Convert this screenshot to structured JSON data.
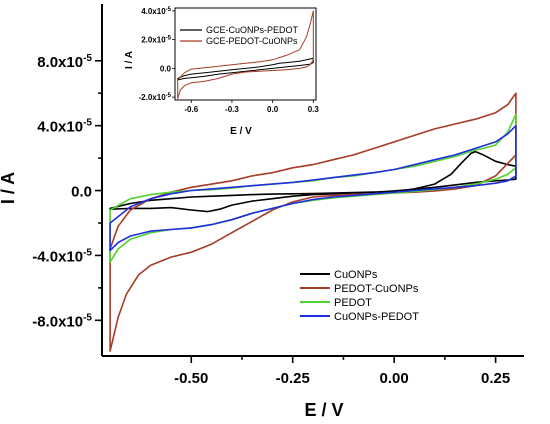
{
  "chart_data": [
    {
      "type": "line",
      "xlabel": "E / V",
      "ylabel": "I / A",
      "xlim": [
        -0.72,
        0.32
      ],
      "ylim": [
        -0.000102,
        0.000115
      ],
      "x_ticks": [
        -0.5,
        -0.25,
        0.0,
        0.25
      ],
      "x_tick_labels": [
        "-0.50",
        "-0.25",
        "0.00",
        "0.25"
      ],
      "y_ticks": [
        -8e-05,
        -4e-05,
        0.0,
        4e-05,
        8e-05
      ],
      "y_tick_labels": [
        {
          "mant": "-8.0x10",
          "exp": "-5"
        },
        {
          "mant": "-4.0x10",
          "exp": "-5"
        },
        {
          "mant": "0.0",
          "exp": ""
        },
        {
          "mant": "4.0x10",
          "exp": "-5"
        },
        {
          "mant": "8.0x10",
          "exp": "-5"
        }
      ],
      "legend_position": "bottom-right",
      "series": [
        {
          "name": "CuONPs",
          "color": "#000000",
          "x": [
            -0.7,
            -0.65,
            -0.6,
            -0.55,
            -0.5,
            -0.45,
            -0.4,
            -0.35,
            -0.3,
            -0.25,
            -0.2,
            -0.15,
            -0.1,
            -0.05,
            0.0,
            0.05,
            0.1,
            0.14,
            0.17,
            0.19,
            0.2,
            0.22,
            0.25,
            0.28,
            0.3,
            0.3,
            0.28,
            0.25,
            0.2,
            0.15,
            0.1,
            0.05,
            0.0,
            -0.05,
            -0.1,
            -0.15,
            -0.2,
            -0.25,
            -0.3,
            -0.35,
            -0.4,
            -0.43,
            -0.46,
            -0.5,
            -0.55,
            -0.6,
            -0.65,
            -0.7
          ],
          "y": [
            -1.1e-05,
            -8e-06,
            -6e-06,
            -5e-06,
            -4e-06,
            -3.5e-06,
            -3e-06,
            -2.5e-06,
            -2.2e-06,
            -2e-06,
            -1.8e-06,
            -1.5e-06,
            -1.2e-06,
            -9e-07,
            -6e-07,
            1e-06,
            4e-06,
            1e-05,
            1.8e-05,
            2.3e-05,
            2.4e-05,
            2.2e-05,
            1.8e-05,
            1.6e-05,
            1.5e-05,
            7e-06,
            6.5e-06,
            6e-06,
            5e-06,
            3.5e-06,
            2e-06,
            8e-07,
            -2e-07,
            -1e-06,
            -1.5e-06,
            -2e-06,
            -2.5e-06,
            -3.5e-06,
            -5e-06,
            -6.5e-06,
            -9e-06,
            -1.15e-05,
            -1.3e-05,
            -1.2e-05,
            -1.05e-05,
            -1.1e-05,
            -1.1e-05,
            -1.15e-05
          ]
        },
        {
          "name": "PEDOT-CuONPs",
          "color": "#a83a26",
          "x": [
            -0.7,
            -0.68,
            -0.66,
            -0.63,
            -0.6,
            -0.55,
            -0.5,
            -0.45,
            -0.4,
            -0.35,
            -0.3,
            -0.25,
            -0.2,
            -0.15,
            -0.1,
            -0.05,
            0.0,
            0.05,
            0.1,
            0.15,
            0.2,
            0.25,
            0.3,
            0.3,
            0.28,
            0.25,
            0.2,
            0.15,
            0.1,
            0.05,
            0.0,
            -0.05,
            -0.1,
            -0.15,
            -0.2,
            -0.25,
            -0.3,
            -0.35,
            -0.4,
            -0.45,
            -0.5,
            -0.55,
            -0.6,
            -0.65,
            -0.68,
            -0.7
          ],
          "y": [
            -9.9e-05,
            -7.8e-05,
            -6.4e-05,
            -5.2e-05,
            -4.6e-05,
            -4.1e-05,
            -3.8e-05,
            -3.3e-05,
            -2.6e-05,
            -1.9e-05,
            -1.2e-05,
            -7e-06,
            -4e-06,
            -3e-06,
            -2.5e-06,
            -2e-06,
            -1.5e-06,
            -1e-06,
            -2e-07,
            1e-06,
            3e-06,
            9e-06,
            2.2e-05,
            6e-05,
            5.3e-05,
            4.8e-05,
            4.4e-05,
            4.1e-05,
            3.8e-05,
            3.4e-05,
            3e-05,
            2.6e-05,
            2.2e-05,
            1.9e-05,
            1.6e-05,
            1.4e-05,
            1.1e-05,
            9e-06,
            6e-06,
            4e-06,
            2e-06,
            -1e-06,
            -5e-06,
            -1.2e-05,
            -2.2e-05,
            -3.6e-05
          ]
        },
        {
          "name": "PEDOT",
          "color": "#4fd12f",
          "x": [
            -0.7,
            -0.68,
            -0.65,
            -0.6,
            -0.55,
            -0.5,
            -0.45,
            -0.4,
            -0.35,
            -0.3,
            -0.25,
            -0.2,
            -0.15,
            -0.1,
            -0.05,
            0.0,
            0.05,
            0.1,
            0.15,
            0.2,
            0.25,
            0.28,
            0.3,
            0.3,
            0.28,
            0.25,
            0.22,
            0.2,
            0.15,
            0.1,
            0.05,
            0.0,
            -0.05,
            -0.1,
            -0.15,
            -0.2,
            -0.25,
            -0.3,
            -0.35,
            -0.4,
            -0.45,
            -0.5,
            -0.55,
            -0.6,
            -0.65,
            -0.7
          ],
          "y": [
            -4.4e-05,
            -3.6e-05,
            -3e-05,
            -2.6e-05,
            -2.4e-05,
            -2.3e-05,
            -2.1e-05,
            -1.8e-05,
            -1.4e-05,
            -1.1e-05,
            -8e-06,
            -6e-06,
            -4.5e-06,
            -3.5e-06,
            -2.5e-06,
            -1.5e-06,
            -5e-07,
            5e-07,
            2e-06,
            4e-06,
            7e-06,
            1e-05,
            1.4e-05,
            4.7e-05,
            3.6e-05,
            2.8e-05,
            2.6e-05,
            2.5e-05,
            2.1e-05,
            1.8e-05,
            1.5e-05,
            1.3e-05,
            1.1e-05,
            9e-06,
            8e-06,
            6e-06,
            5e-06,
            4e-06,
            3e-06,
            1.5e-06,
            5e-07,
            0,
            -1e-06,
            -2.5e-06,
            -5e-06,
            -1.2e-05
          ]
        },
        {
          "name": "CuONPs-PEDOT",
          "color": "#1f2ee0",
          "x": [
            -0.7,
            -0.68,
            -0.65,
            -0.6,
            -0.55,
            -0.5,
            -0.45,
            -0.4,
            -0.35,
            -0.3,
            -0.25,
            -0.2,
            -0.15,
            -0.1,
            -0.05,
            0.0,
            0.05,
            0.1,
            0.15,
            0.2,
            0.25,
            0.28,
            0.3,
            0.3,
            0.28,
            0.25,
            0.2,
            0.15,
            0.1,
            0.05,
            0.0,
            -0.05,
            -0.1,
            -0.15,
            -0.2,
            -0.25,
            -0.3,
            -0.35,
            -0.4,
            -0.45,
            -0.5,
            -0.55,
            -0.6,
            -0.65,
            -0.7
          ],
          "y": [
            -3.7e-05,
            -3.2e-05,
            -2.8e-05,
            -2.5e-05,
            -2.4e-05,
            -2.3e-05,
            -2.1e-05,
            -1.8e-05,
            -1.4e-05,
            -1.1e-05,
            -8e-06,
            -5.5e-06,
            -4e-06,
            -3e-06,
            -2e-06,
            -1e-06,
            0,
            1e-06,
            2e-06,
            3e-06,
            4.5e-06,
            6e-06,
            9e-06,
            4e-05,
            3.5e-05,
            3e-05,
            2.6e-05,
            2.2e-05,
            1.9e-05,
            1.6e-05,
            1.3e-05,
            1.1e-05,
            9.5e-06,
            8e-06,
            6.5e-06,
            5e-06,
            4e-06,
            3e-06,
            2e-06,
            1e-06,
            0,
            -2e-06,
            -5e-06,
            -1e-05,
            -2e-05
          ]
        }
      ]
    },
    {
      "type": "line",
      "xlabel": "E / V",
      "ylabel": "I / A",
      "xlim": [
        -0.72,
        0.32
      ],
      "ylim": [
        -2.2e-05,
        4.2e-05
      ],
      "x_ticks": [
        -0.6,
        -0.3,
        0.0,
        0.3
      ],
      "x_tick_labels": [
        "-0.6",
        "-0.3",
        "0.0",
        "0.3"
      ],
      "y_ticks": [
        -2e-05,
        0.0,
        2e-05,
        4e-05
      ],
      "y_tick_labels": [
        {
          "mant": "-2.0x10",
          "exp": "-5"
        },
        {
          "mant": "0.0",
          "exp": ""
        },
        {
          "mant": "2.0x10",
          "exp": "-5"
        },
        {
          "mant": "4.0x10",
          "exp": "-5"
        }
      ],
      "legend_position": "top-left",
      "series": [
        {
          "name": "GCE-CuONPs-PEDOT",
          "color": "#000000",
          "x": [
            -0.7,
            -0.65,
            -0.6,
            -0.5,
            -0.4,
            -0.3,
            -0.2,
            -0.1,
            0.0,
            0.1,
            0.2,
            0.28,
            0.3,
            0.3,
            0.25,
            0.2,
            0.1,
            0.05,
            0.0,
            -0.1,
            -0.2,
            -0.3,
            -0.4,
            -0.5,
            -0.6,
            -0.65,
            -0.7
          ],
          "y": [
            -8e-06,
            -7e-06,
            -6.5e-06,
            -5.5e-06,
            -4e-06,
            -3e-06,
            -2e-06,
            -1e-06,
            0,
            1e-06,
            2e-06,
            3e-06,
            4e-06,
            7e-06,
            6e-06,
            5e-06,
            4e-06,
            3.5e-06,
            2.5e-06,
            1e-06,
            0,
            -1e-06,
            -2e-06,
            -3e-06,
            -4e-06,
            -5e-06,
            -7e-06
          ]
        },
        {
          "name": "GCE-PEDOT-CuONPs",
          "color": "#a83a26",
          "x": [
            -0.7,
            -0.68,
            -0.65,
            -0.6,
            -0.5,
            -0.4,
            -0.3,
            -0.2,
            -0.1,
            0.0,
            0.1,
            0.2,
            0.25,
            0.28,
            0.3,
            0.3,
            0.28,
            0.25,
            0.2,
            0.1,
            0.0,
            -0.1,
            -0.2,
            -0.3,
            -0.4,
            -0.5,
            -0.6,
            -0.65,
            -0.7
          ],
          "y": [
            -2.1e-05,
            -1.5e-05,
            -1.2e-05,
            -1e-05,
            -9e-06,
            -7e-06,
            -4e-06,
            -2.5e-06,
            -2e-06,
            -1.5e-06,
            -1e-06,
            0,
            1e-06,
            3e-06,
            6e-06,
            4e-05,
            3.2e-05,
            2.2e-05,
            1.3e-05,
            9e-06,
            6e-06,
            4.5e-06,
            3.5e-06,
            2.5e-06,
            1.5e-06,
            5e-07,
            -5e-07,
            -3e-06,
            -8e-06
          ]
        }
      ]
    }
  ]
}
